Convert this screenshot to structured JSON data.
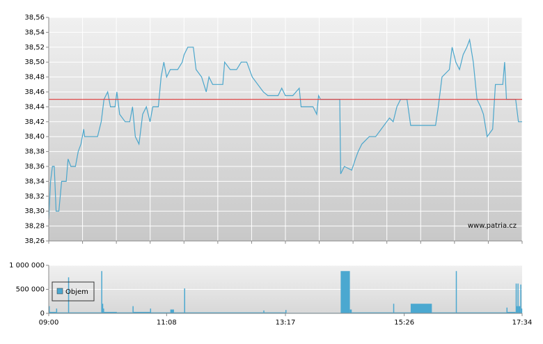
{
  "chart_data": [
    {
      "type": "line",
      "xlim": [
        "09:00",
        "17:34"
      ],
      "ylim": [
        38.26,
        38.56
      ],
      "yticks": [
        {
          "value": 38.26,
          "label": "38,26"
        },
        {
          "value": 38.28,
          "label": "38,28"
        },
        {
          "value": 38.3,
          "label": "38,30"
        },
        {
          "value": 38.32,
          "label": "38,32"
        },
        {
          "value": 38.34,
          "label": "38,34"
        },
        {
          "value": 38.36,
          "label": "38,36"
        },
        {
          "value": 38.38,
          "label": "38,38"
        },
        {
          "value": 38.4,
          "label": "38,40"
        },
        {
          "value": 38.42,
          "label": "38,42"
        },
        {
          "value": 38.44,
          "label": "38,44"
        },
        {
          "value": 38.46,
          "label": "38,46"
        },
        {
          "value": 38.48,
          "label": "38,48"
        },
        {
          "value": 38.5,
          "label": "38,50"
        },
        {
          "value": 38.52,
          "label": "38,52"
        },
        {
          "value": 38.54,
          "label": "38,54"
        },
        {
          "value": 38.56,
          "label": "38,56"
        }
      ],
      "grid": true,
      "hline": {
        "value": 38.45,
        "color": "#e03a3a"
      },
      "annotation": "www.patria.cz",
      "x": [
        "09:00",
        "09:02",
        "09:04",
        "09:06",
        "09:08",
        "09:11",
        "09:14",
        "09:19",
        "09:21",
        "09:24",
        "09:29",
        "09:32",
        "09:35",
        "09:38",
        "09:39",
        "09:53",
        "09:57",
        "10:00",
        "10:04",
        "10:07",
        "10:12",
        "10:14",
        "10:17",
        "10:23",
        "10:28",
        "10:31",
        "10:34",
        "10:38",
        "10:42",
        "10:46",
        "10:50",
        "10:53",
        "10:59",
        "11:02",
        "11:05",
        "11:08",
        "11:12",
        "11:20",
        "11:25",
        "11:27",
        "11:31",
        "11:37",
        "11:40",
        "11:46",
        "11:51",
        "11:54",
        "11:58",
        "12:09",
        "12:11",
        "12:17",
        "12:24",
        "12:29",
        "12:35",
        "12:41",
        "12:47",
        "12:53",
        "12:58",
        "13:09",
        "13:13",
        "13:17",
        "13:25",
        "13:32",
        "13:34",
        "13:47",
        "13:51",
        "13:53",
        "13:55",
        "14:16",
        "14:17",
        "14:21",
        "14:29",
        "14:33",
        "14:36",
        "14:40",
        "14:48",
        "14:55",
        "15:01",
        "15:07",
        "15:10",
        "15:14",
        "15:18",
        "15:22",
        "15:29",
        "15:33",
        "16:00",
        "16:03",
        "16:07",
        "16:11",
        "16:15",
        "16:18",
        "16:22",
        "16:26",
        "16:30",
        "16:34",
        "16:37",
        "16:41",
        "16:45",
        "16:49",
        "16:52",
        "16:56",
        "17:02",
        "17:05",
        "17:13",
        "17:15",
        "17:17",
        "17:27",
        "17:30",
        "17:34"
      ],
      "series": [
        {
          "color": "#4aa6cc",
          "values": [
            38.29,
            38.34,
            38.36,
            38.36,
            38.3,
            38.3,
            38.34,
            38.34,
            38.37,
            38.36,
            38.36,
            38.38,
            38.39,
            38.41,
            38.4,
            38.4,
            38.42,
            38.45,
            38.46,
            38.44,
            38.44,
            38.46,
            38.43,
            38.42,
            38.42,
            38.44,
            38.4,
            38.39,
            38.43,
            38.44,
            38.42,
            38.44,
            38.44,
            38.48,
            38.5,
            38.48,
            38.49,
            38.49,
            38.5,
            38.51,
            38.52,
            38.52,
            38.49,
            38.48,
            38.46,
            38.48,
            38.47,
            38.47,
            38.5,
            38.49,
            38.49,
            38.5,
            38.5,
            38.48,
            38.47,
            38.46,
            38.455,
            38.455,
            38.465,
            38.455,
            38.455,
            38.465,
            38.44,
            38.44,
            38.43,
            38.455,
            38.45,
            38.45,
            38.35,
            38.36,
            38.355,
            38.37,
            38.38,
            38.39,
            38.4,
            38.4,
            38.41,
            38.42,
            38.425,
            38.42,
            38.44,
            38.45,
            38.45,
            38.415,
            38.415,
            38.44,
            38.48,
            38.485,
            38.49,
            38.52,
            38.5,
            38.49,
            38.51,
            38.52,
            38.53,
            38.5,
            38.45,
            38.44,
            38.43,
            38.4,
            38.41,
            38.47,
            38.47,
            38.5,
            38.45,
            38.45,
            38.42,
            38.42
          ]
        }
      ]
    },
    {
      "type": "bar",
      "xlim": [
        "09:00",
        "17:34"
      ],
      "xticks": [
        "09:00",
        "11:08",
        "13:17",
        "15:26",
        "17:34"
      ],
      "ylim": [
        0,
        1000000
      ],
      "yticks": [
        0,
        {
          "value": 500000,
          "label": "500 000"
        },
        {
          "value": 1000000,
          "label": "1 000 000"
        }
      ],
      "legend": "upper left",
      "x": [
        "09:00",
        "09:01",
        "09:08",
        "09:09",
        "09:21",
        "09:22",
        "09:57",
        "09:58",
        "09:59",
        "10:00",
        "10:14",
        "10:31",
        "10:32",
        "10:50",
        "10:51",
        "11:12",
        "11:16",
        "11:27",
        "11:28",
        "12:53",
        "12:54",
        "13:17",
        "13:18",
        "14:17",
        "14:27",
        "14:29",
        "15:14",
        "15:15",
        "15:33",
        "15:56",
        "16:22",
        "16:23",
        "17:17",
        "17:18",
        "17:27",
        "17:28",
        "17:29",
        "17:30",
        "17:32",
        "17:33"
      ],
      "series": [
        {
          "name": "Objem",
          "color": "#4ba8d0",
          "values": [
            150000,
            30000,
            100000,
            20000,
            750000,
            20000,
            880000,
            200000,
            100000,
            30000,
            20000,
            150000,
            30000,
            100000,
            20000,
            80000,
            20000,
            520000,
            20000,
            60000,
            20000,
            70000,
            10000,
            880000,
            80000,
            20000,
            200000,
            20000,
            200000,
            20000,
            880000,
            20000,
            120000,
            30000,
            620000,
            150000,
            620000,
            150000,
            600000,
            100000
          ]
        }
      ]
    }
  ]
}
